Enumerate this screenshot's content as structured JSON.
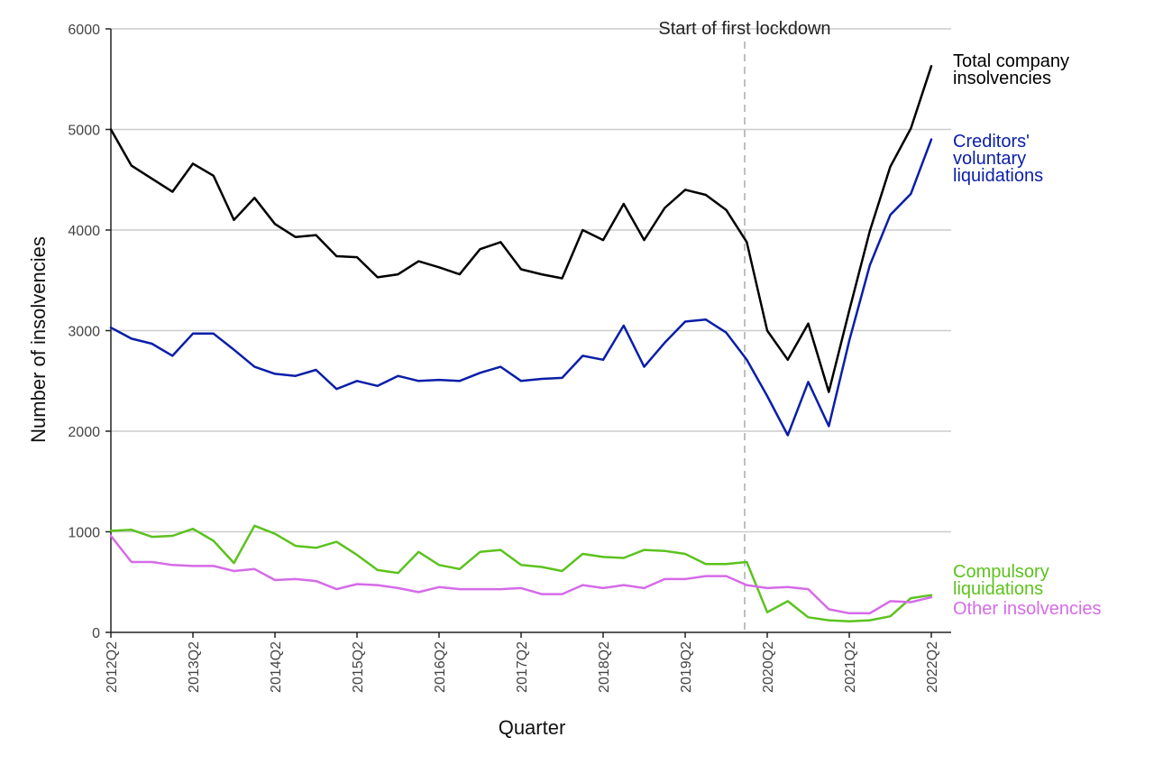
{
  "chart_data": {
    "type": "line",
    "xlabel": "Quarter",
    "ylabel": "Number of insolvencies",
    "ylim": [
      0,
      6000
    ],
    "yticks": [
      0,
      1000,
      2000,
      3000,
      4000,
      5000,
      6000
    ],
    "grid": "horizontal",
    "x": [
      "2012Q2",
      "2012Q3",
      "2012Q4",
      "2013Q1",
      "2013Q2",
      "2013Q3",
      "2013Q4",
      "2014Q1",
      "2014Q2",
      "2014Q3",
      "2014Q4",
      "2015Q1",
      "2015Q2",
      "2015Q3",
      "2015Q4",
      "2016Q1",
      "2016Q2",
      "2016Q3",
      "2016Q4",
      "2017Q1",
      "2017Q2",
      "2017Q3",
      "2017Q4",
      "2018Q1",
      "2018Q2",
      "2018Q3",
      "2018Q4",
      "2019Q1",
      "2019Q2",
      "2019Q3",
      "2019Q4",
      "2020Q1",
      "2020Q2",
      "2020Q3",
      "2020Q4",
      "2021Q1",
      "2021Q2",
      "2021Q3",
      "2021Q4",
      "2022Q1",
      "2022Q2"
    ],
    "xtick_labels": [
      "2012Q2",
      "2013Q2",
      "2014Q2",
      "2015Q2",
      "2016Q2",
      "2017Q2",
      "2018Q2",
      "2019Q2",
      "2020Q2",
      "2021Q2",
      "2022Q2"
    ],
    "annotation": {
      "label": "Start of first lockdown",
      "x_between": [
        "2019Q4",
        "2020Q1"
      ],
      "position": 30.9
    },
    "series": [
      {
        "name": "Total company insolvencies",
        "color": "#000000",
        "label_lines": [
          "Total company",
          "insolvencies"
        ],
        "values": [
          5000,
          4640,
          4510,
          4380,
          4660,
          4540,
          4100,
          4320,
          4060,
          3930,
          3950,
          3740,
          3730,
          3530,
          3560,
          3690,
          3630,
          3560,
          3810,
          3880,
          3610,
          3560,
          3520,
          4000,
          3900,
          4260,
          3900,
          4220,
          4400,
          4350,
          4200,
          3880,
          3000,
          2710,
          3070,
          2390,
          3200,
          3990,
          4630,
          5010,
          5630
        ]
      },
      {
        "name": "Creditors' voluntary liquidations",
        "color": "#0a1ea8",
        "label_lines": [
          "Creditors'",
          "voluntary",
          "liquidations"
        ],
        "values": [
          3030,
          2920,
          2870,
          2750,
          2970,
          2970,
          2810,
          2640,
          2570,
          2550,
          2610,
          2420,
          2500,
          2450,
          2550,
          2500,
          2510,
          2500,
          2580,
          2640,
          2500,
          2520,
          2530,
          2750,
          2710,
          3050,
          2640,
          2880,
          3090,
          3110,
          2980,
          2710,
          2350,
          1960,
          2490,
          2050,
          2900,
          3650,
          4150,
          4360,
          4900
        ]
      },
      {
        "name": "Compulsory liquidations",
        "color": "#5cc21e",
        "label_lines": [
          "Compulsory",
          "liquidations"
        ],
        "values": [
          1010,
          1020,
          950,
          960,
          1030,
          910,
          690,
          1060,
          980,
          860,
          840,
          900,
          770,
          620,
          590,
          800,
          670,
          630,
          800,
          820,
          670,
          650,
          610,
          780,
          750,
          740,
          820,
          810,
          780,
          680,
          680,
          700,
          200,
          310,
          150,
          120,
          110,
          120,
          160,
          340,
          370
        ]
      },
      {
        "name": "Other insolvencies",
        "color": "#d56be8",
        "label_lines": [
          "Other insolvencies"
        ],
        "values": [
          960,
          700,
          700,
          670,
          660,
          660,
          610,
          630,
          520,
          530,
          510,
          430,
          480,
          470,
          440,
          400,
          450,
          430,
          430,
          430,
          440,
          380,
          380,
          470,
          440,
          470,
          440,
          530,
          530,
          560,
          560,
          470,
          440,
          450,
          430,
          230,
          190,
          190,
          310,
          300,
          350
        ]
      }
    ]
  }
}
